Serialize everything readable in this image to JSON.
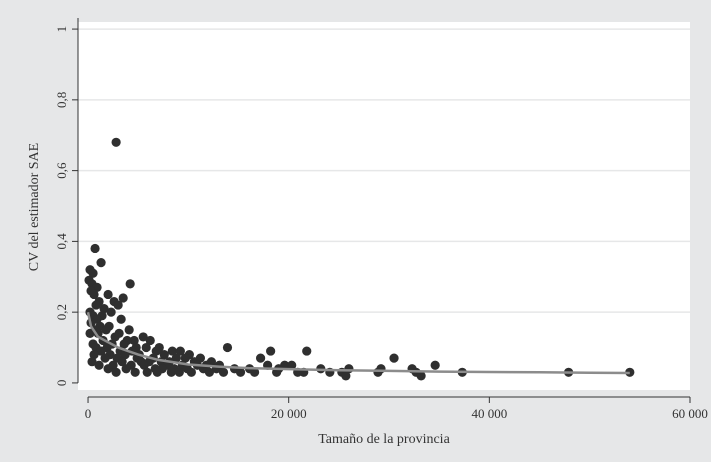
{
  "chart_data": {
    "type": "scatter",
    "title": "",
    "xlabel": "Tamaño de la provincia",
    "ylabel": "CV del estimador SAE",
    "xlim": [
      -1000,
      60000
    ],
    "ylim": [
      -0.02,
      1.02
    ],
    "xticks": [
      {
        "value": 0,
        "label": "0"
      },
      {
        "value": 20000,
        "label": "20 000"
      },
      {
        "value": 40000,
        "label": "40 000"
      },
      {
        "value": 60000,
        "label": "60 000"
      }
    ],
    "yticks": [
      {
        "value": 0,
        "label": "0"
      },
      {
        "value": 0.2,
        "label": "0,2"
      },
      {
        "value": 0.4,
        "label": "0,4"
      },
      {
        "value": 0.6,
        "label": "0,6"
      },
      {
        "value": 0.8,
        "label": "0,8"
      },
      {
        "value": 1,
        "label": "1"
      }
    ],
    "grid": true,
    "legend": false,
    "colors": {
      "background": "#e6e7e8",
      "plot_area": "#ffffff",
      "gridline": "#e6e7e8",
      "axis": "#333333",
      "points": "#2f2f2f",
      "trend": "#8c8c8c"
    },
    "series": [
      {
        "type": "scatter",
        "points": [
          [
            2800,
            0.68
          ],
          [
            700,
            0.38
          ],
          [
            1300,
            0.34
          ],
          [
            200,
            0.32
          ],
          [
            500,
            0.31
          ],
          [
            100,
            0.29
          ],
          [
            400,
            0.28
          ],
          [
            4200,
            0.28
          ],
          [
            900,
            0.27
          ],
          [
            300,
            0.26
          ],
          [
            600,
            0.25
          ],
          [
            2000,
            0.25
          ],
          [
            3500,
            0.24
          ],
          [
            1100,
            0.23
          ],
          [
            2600,
            0.23
          ],
          [
            800,
            0.22
          ],
          [
            3000,
            0.22
          ],
          [
            1600,
            0.21
          ],
          [
            200,
            0.2
          ],
          [
            2300,
            0.2
          ],
          [
            500,
            0.19
          ],
          [
            1400,
            0.19
          ],
          [
            3300,
            0.18
          ],
          [
            900,
            0.18
          ],
          [
            300,
            0.17
          ],
          [
            1200,
            0.16
          ],
          [
            2100,
            0.16
          ],
          [
            1800,
            0.15
          ],
          [
            700,
            0.15
          ],
          [
            4100,
            0.15
          ],
          [
            3100,
            0.14
          ],
          [
            200,
            0.14
          ],
          [
            1000,
            0.14
          ],
          [
            5500,
            0.13
          ],
          [
            2700,
            0.13
          ],
          [
            4600,
            0.12
          ],
          [
            3900,
            0.12
          ],
          [
            1500,
            0.12
          ],
          [
            6200,
            0.12
          ],
          [
            500,
            0.11
          ],
          [
            2400,
            0.11
          ],
          [
            3600,
            0.11
          ],
          [
            7100,
            0.1
          ],
          [
            4800,
            0.1
          ],
          [
            1900,
            0.1
          ],
          [
            5800,
            0.1
          ],
          [
            800,
            0.1
          ],
          [
            3200,
            0.09
          ],
          [
            6800,
            0.09
          ],
          [
            8400,
            0.09
          ],
          [
            1300,
            0.09
          ],
          [
            9200,
            0.09
          ],
          [
            4400,
            0.09
          ],
          [
            5100,
            0.08
          ],
          [
            2200,
            0.08
          ],
          [
            7600,
            0.08
          ],
          [
            10100,
            0.08
          ],
          [
            3700,
            0.08
          ],
          [
            600,
            0.08
          ],
          [
            6500,
            0.07
          ],
          [
            8800,
            0.07
          ],
          [
            11200,
            0.07
          ],
          [
            2900,
            0.07
          ],
          [
            4900,
            0.07
          ],
          [
            1700,
            0.07
          ],
          [
            9700,
            0.07
          ],
          [
            7300,
            0.06
          ],
          [
            12300,
            0.06
          ],
          [
            5300,
            0.06
          ],
          [
            3400,
            0.06
          ],
          [
            10600,
            0.06
          ],
          [
            8100,
            0.06
          ],
          [
            400,
            0.06
          ],
          [
            6100,
            0.06
          ],
          [
            11800,
            0.05
          ],
          [
            2500,
            0.05
          ],
          [
            9400,
            0.05
          ],
          [
            7900,
            0.05
          ],
          [
            4300,
            0.05
          ],
          [
            13100,
            0.05
          ],
          [
            5600,
            0.05
          ],
          [
            1100,
            0.05
          ],
          [
            10900,
            0.05
          ],
          [
            8600,
            0.04
          ],
          [
            6700,
            0.04
          ],
          [
            12800,
            0.04
          ],
          [
            3800,
            0.04
          ],
          [
            9900,
            0.04
          ],
          [
            14600,
            0.04
          ],
          [
            7400,
            0.04
          ],
          [
            2000,
            0.04
          ],
          [
            11500,
            0.04
          ],
          [
            5900,
            0.03
          ],
          [
            10300,
            0.03
          ],
          [
            8300,
            0.03
          ],
          [
            13500,
            0.03
          ],
          [
            4700,
            0.03
          ],
          [
            6900,
            0.03
          ],
          [
            12100,
            0.03
          ],
          [
            2800,
            0.03
          ],
          [
            15200,
            0.03
          ],
          [
            9100,
            0.03
          ],
          [
            16600,
            0.03
          ],
          [
            13900,
            0.1
          ],
          [
            18200,
            0.09
          ],
          [
            21800,
            0.09
          ],
          [
            17200,
            0.07
          ],
          [
            17900,
            0.05
          ],
          [
            19600,
            0.05
          ],
          [
            20300,
            0.05
          ],
          [
            19000,
            0.04
          ],
          [
            18800,
            0.03
          ],
          [
            20900,
            0.03
          ],
          [
            21500,
            0.03
          ],
          [
            16100,
            0.04
          ],
          [
            24100,
            0.03
          ],
          [
            25300,
            0.03
          ],
          [
            26000,
            0.04
          ],
          [
            25700,
            0.02
          ],
          [
            23200,
            0.04
          ],
          [
            28900,
            0.03
          ],
          [
            29200,
            0.04
          ],
          [
            30500,
            0.07
          ],
          [
            32300,
            0.04
          ],
          [
            32700,
            0.03
          ],
          [
            33200,
            0.02
          ],
          [
            34600,
            0.05
          ],
          [
            37300,
            0.03
          ],
          [
            47900,
            0.03
          ],
          [
            54000,
            0.03
          ]
        ]
      },
      {
        "type": "line",
        "points": [
          [
            0,
            0.2
          ],
          [
            300,
            0.16
          ],
          [
            1000,
            0.13
          ],
          [
            2000,
            0.115
          ],
          [
            3000,
            0.1
          ],
          [
            5000,
            0.08
          ],
          [
            7000,
            0.065
          ],
          [
            10000,
            0.052
          ],
          [
            13000,
            0.046
          ],
          [
            16000,
            0.042
          ],
          [
            20000,
            0.039
          ],
          [
            25000,
            0.036
          ],
          [
            30000,
            0.034
          ],
          [
            35000,
            0.032
          ],
          [
            40000,
            0.031
          ],
          [
            45000,
            0.03
          ],
          [
            50000,
            0.029
          ],
          [
            54000,
            0.028
          ]
        ]
      }
    ]
  }
}
